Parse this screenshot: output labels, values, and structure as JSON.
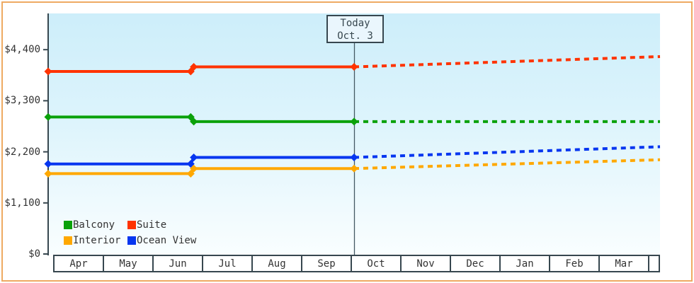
{
  "frame": {
    "border_color": "#eeaa62"
  },
  "chart_data": {
    "type": "line",
    "description": "Cabin price history (solid) and forecast (dashed) by month",
    "x_months": [
      "Apr",
      "May",
      "Jun",
      "Jul",
      "Aug",
      "Sep",
      "Oct",
      "Nov",
      "Dec",
      "Jan",
      "Feb",
      "Mar"
    ],
    "y_ticks": [
      {
        "label": "$4,400",
        "value": 4400
      },
      {
        "label": "$3,300",
        "value": 3300
      },
      {
        "label": "$2,200",
        "value": 2200
      },
      {
        "label": "$1,100",
        "value": 1100
      },
      {
        "label": "$0",
        "value": 0
      }
    ],
    "y_domain": [
      0,
      5180
    ],
    "grid": false,
    "today_annotation": {
      "line1": "Today",
      "line2": "Oct. 3",
      "t": 0.5
    },
    "series": [
      {
        "name": "Suite",
        "color": "#ff3300",
        "solid": [
          [
            0,
            3930
          ],
          [
            0.233,
            3930
          ],
          [
            0.238,
            4030
          ],
          [
            0.5,
            4030
          ]
        ],
        "dashed": [
          [
            0.5,
            4030
          ],
          [
            1,
            4250
          ]
        ]
      },
      {
        "name": "Balcony",
        "color": "#0aa10a",
        "solid": [
          [
            0,
            2950
          ],
          [
            0.233,
            2950
          ],
          [
            0.238,
            2850
          ],
          [
            0.5,
            2850
          ]
        ],
        "dashed": [
          [
            0.5,
            2850
          ],
          [
            1,
            2850
          ]
        ]
      },
      {
        "name": "Ocean View",
        "color": "#0636f0",
        "solid": [
          [
            0,
            1940
          ],
          [
            0.233,
            1940
          ],
          [
            0.238,
            2080
          ],
          [
            0.5,
            2080
          ]
        ],
        "dashed": [
          [
            0.5,
            2080
          ],
          [
            1,
            2310
          ]
        ]
      },
      {
        "name": "Interior",
        "color": "#ffa800",
        "solid": [
          [
            0,
            1730
          ],
          [
            0.233,
            1730
          ],
          [
            0.238,
            1840
          ],
          [
            0.5,
            1840
          ]
        ],
        "dashed": [
          [
            0.5,
            1840
          ],
          [
            1,
            2030
          ]
        ]
      }
    ],
    "legend": [
      {
        "label": "Balcony",
        "color": "#0aa10a"
      },
      {
        "label": "Suite",
        "color": "#ff3300"
      },
      {
        "label": "Interior",
        "color": "#ffa800"
      },
      {
        "label": "Ocean View",
        "color": "#0636f0"
      }
    ]
  }
}
